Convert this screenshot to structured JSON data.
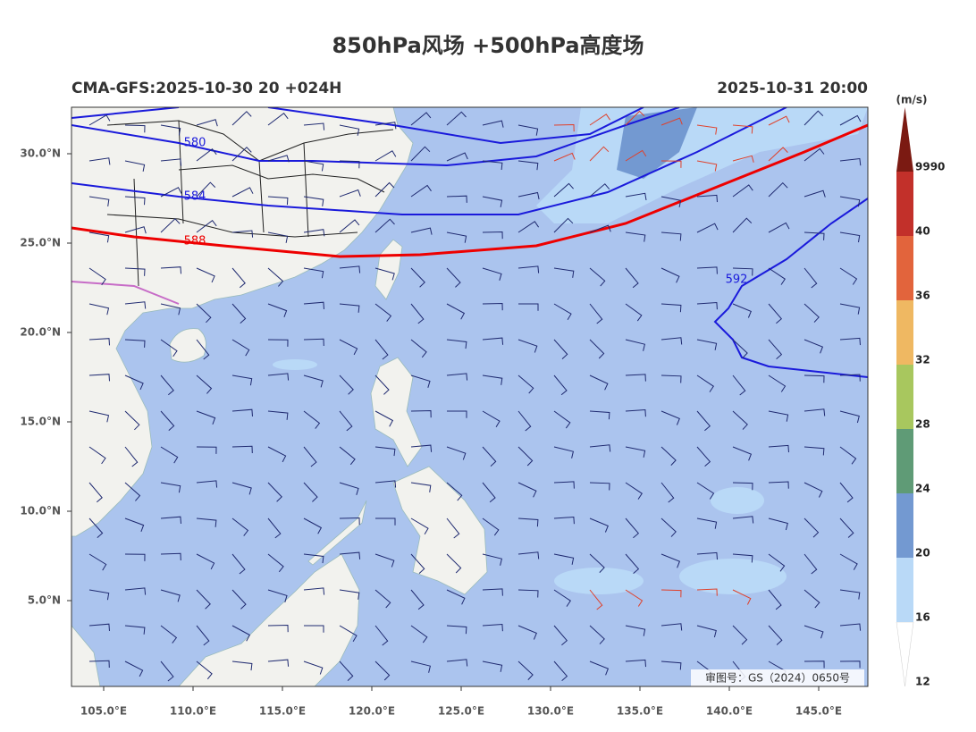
{
  "map": {
    "title": "850hPa风场 +500hPa高度场",
    "left_label": "CMA-GFS:2025-10-30 20 +024H",
    "right_label": "2025-10-31 20:00",
    "xlim": [
      103.2,
      147.75
    ],
    "ylim": [
      0.2,
      32.6
    ],
    "xticks": [
      {
        "value": 105,
        "label": "105.0°E"
      },
      {
        "value": 110,
        "label": "110.0°E"
      },
      {
        "value": 115,
        "label": "115.0°E"
      },
      {
        "value": 120,
        "label": "120.0°E"
      },
      {
        "value": 125,
        "label": "125.0°E"
      },
      {
        "value": 130,
        "label": "130.0°E"
      },
      {
        "value": 135,
        "label": "135.0°E"
      },
      {
        "value": 140,
        "label": "140.0°E"
      },
      {
        "value": 145,
        "label": "145.0°E"
      }
    ],
    "yticks": [
      {
        "value": 30,
        "label": "30.0°N"
      },
      {
        "value": 25,
        "label": "25.0°N"
      },
      {
        "value": 20,
        "label": "20.0°N"
      },
      {
        "value": 15,
        "label": "15.0°N"
      },
      {
        "value": 10,
        "label": "10.0°N"
      },
      {
        "value": 5,
        "label": "5.0°N"
      }
    ],
    "contour_labels": [
      "580",
      "584",
      "588",
      "592"
    ],
    "colorbar": {
      "unit": "(m/s)",
      "levels": [
        12,
        16,
        20,
        24,
        28,
        32,
        36,
        40,
        9990
      ],
      "colors": [
        "#ffffff",
        "#b9d9f7",
        "#7399d1",
        "#5f9b76",
        "#a8c75e",
        "#efb862",
        "#e2643c",
        "#c2302a"
      ],
      "extend_color": "#7b1a12"
    },
    "footer": "审图号：GS（2024）0650号"
  }
}
